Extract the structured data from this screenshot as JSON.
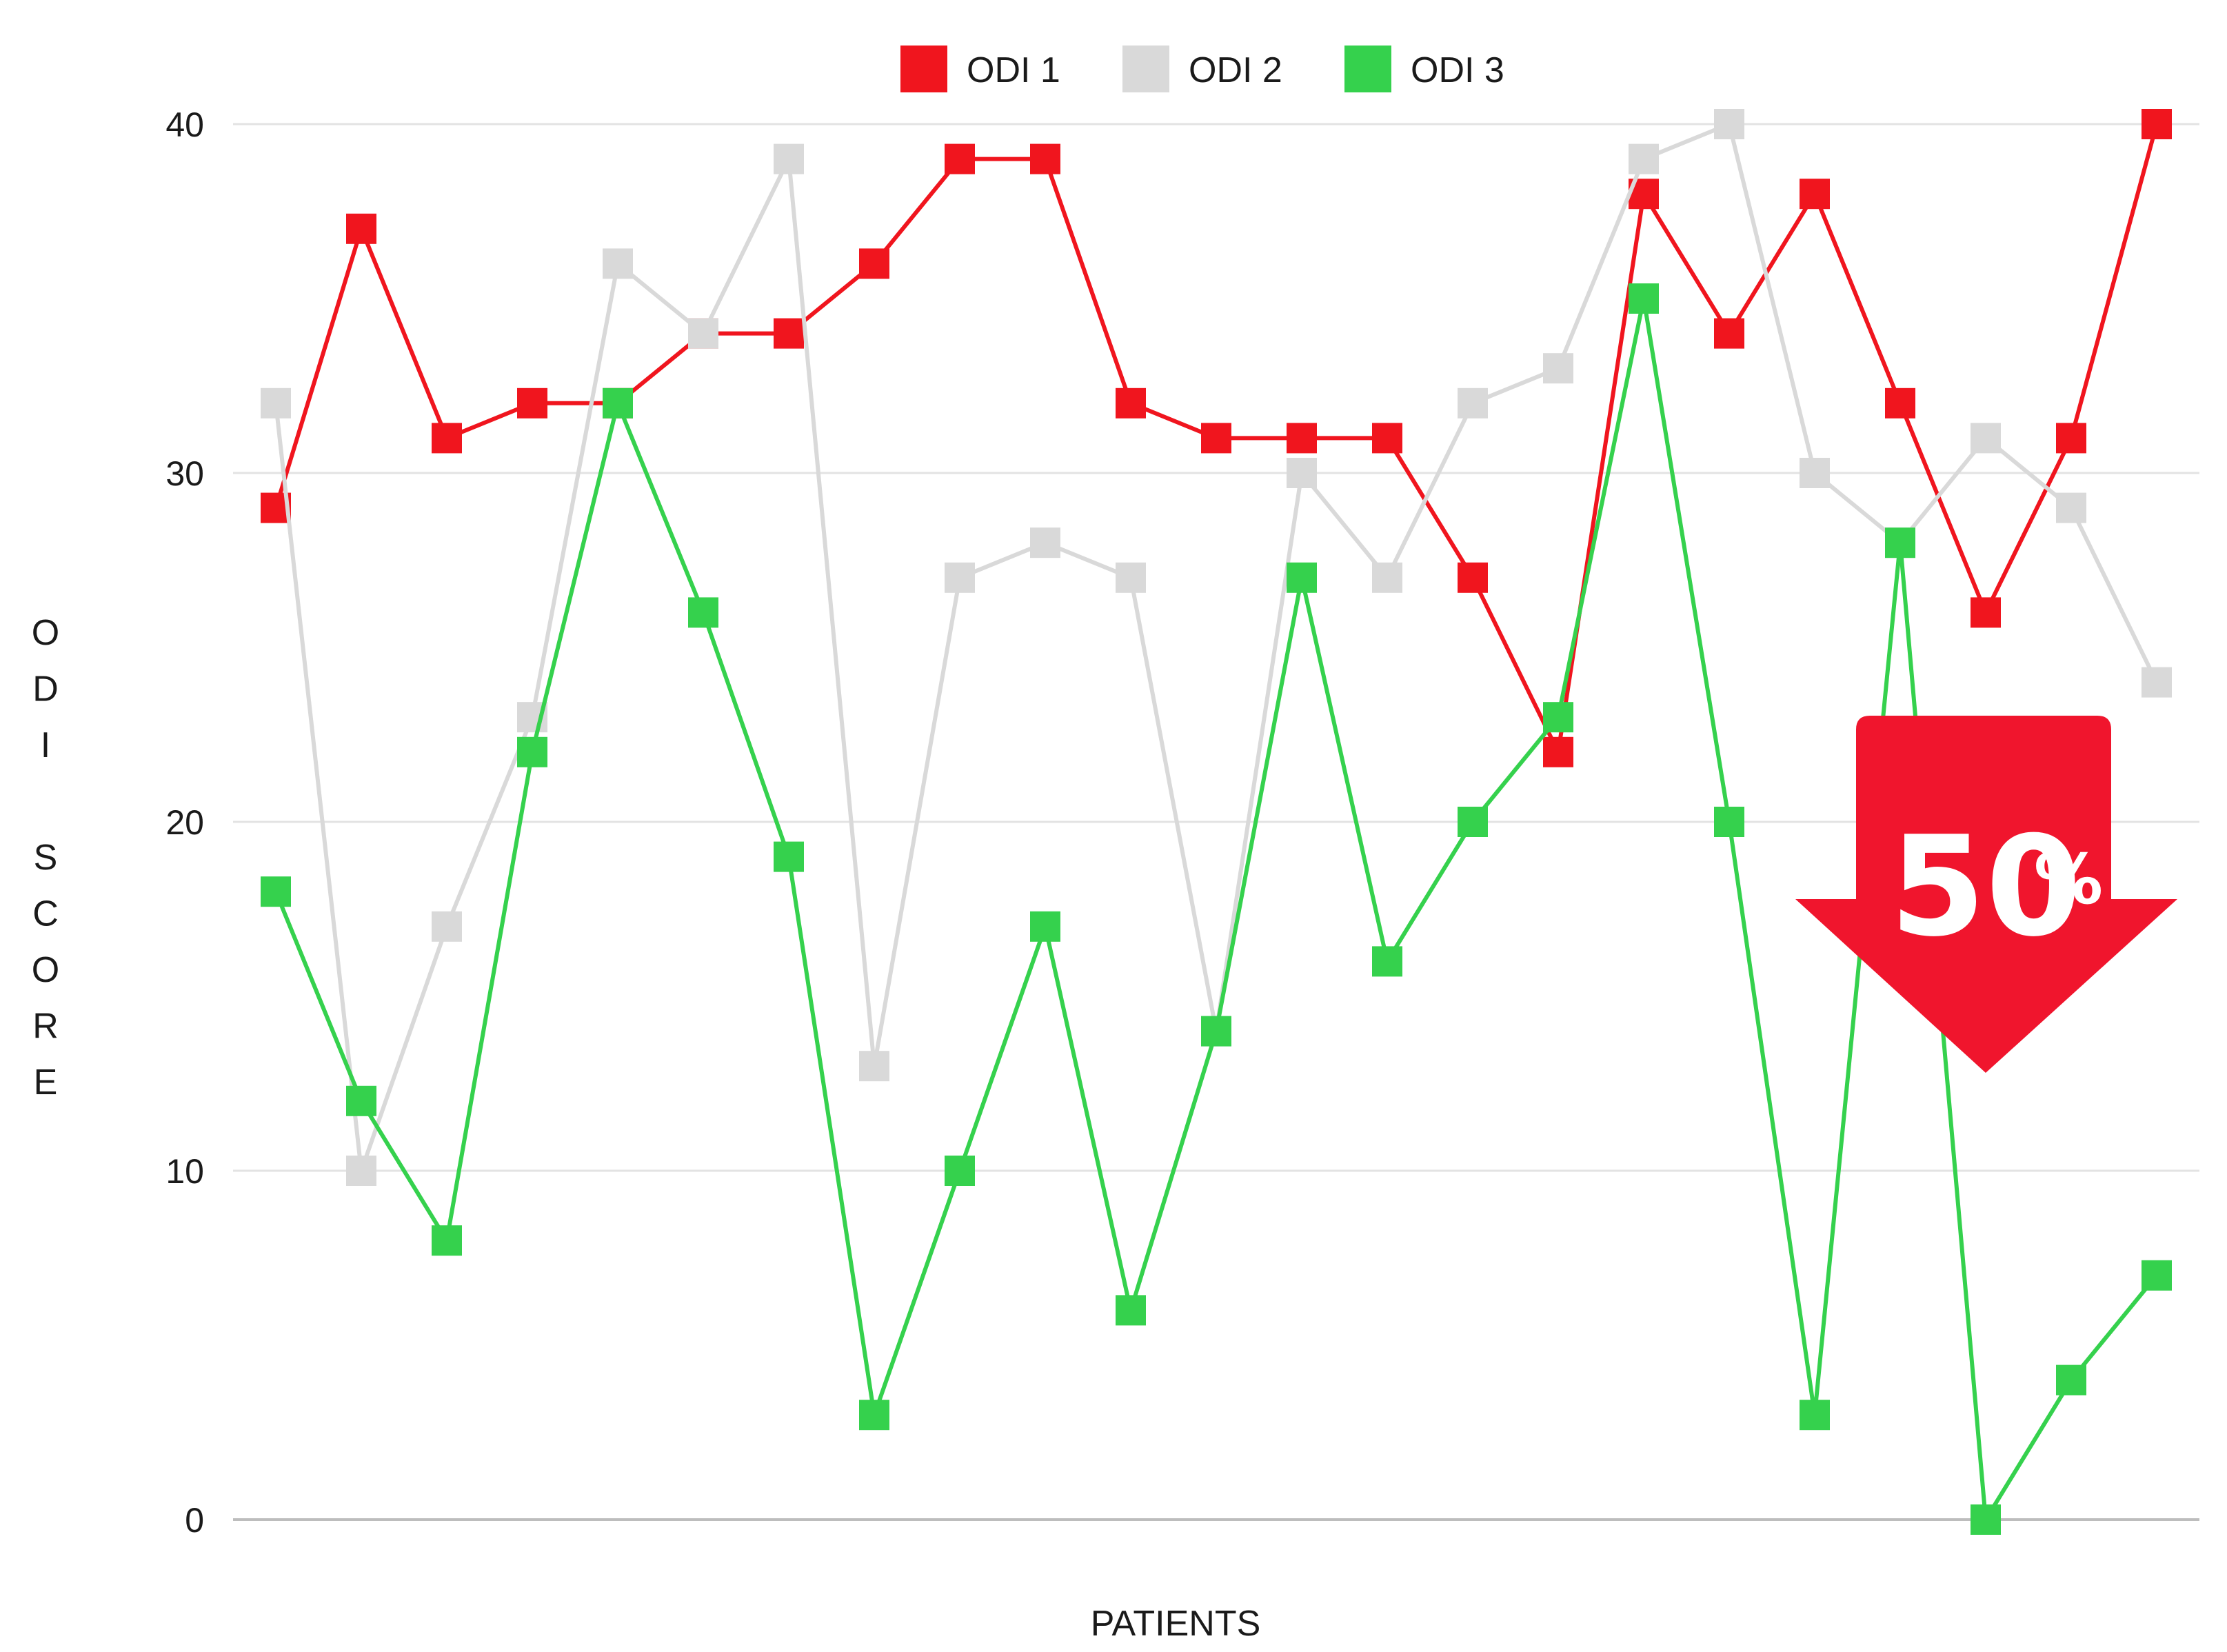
{
  "chart_data": {
    "type": "line",
    "xlabel": "PATIENTS",
    "ylabel": "ODI SCORE",
    "ylim": [
      0,
      40
    ],
    "yticks": [
      0,
      10,
      20,
      30,
      40
    ],
    "grid": true,
    "legend_position": "top-center",
    "x": [
      1,
      2,
      3,
      4,
      5,
      6,
      7,
      8,
      9,
      10,
      11,
      12,
      13,
      14,
      15,
      16,
      17,
      18,
      19,
      20,
      21,
      22,
      23
    ],
    "series": [
      {
        "name": "ODI 1",
        "color": "#f0151e",
        "marker": "square",
        "values": [
          29,
          37,
          31,
          32,
          32,
          34,
          34,
          36,
          39,
          39,
          32,
          31,
          31,
          31,
          27,
          22,
          38,
          34,
          38,
          32,
          26,
          31,
          40
        ]
      },
      {
        "name": "ODI 2",
        "color": "#d9d9d9",
        "marker": "square",
        "values": [
          32,
          10,
          17,
          23,
          36,
          34,
          39,
          13,
          27,
          28,
          27,
          14,
          30,
          27,
          32,
          33,
          39,
          40,
          30,
          28,
          31,
          29,
          24
        ]
      },
      {
        "name": "ODI 3",
        "color": "#35d14d",
        "marker": "square",
        "values": [
          18,
          12,
          8,
          22,
          32,
          26,
          19,
          3,
          10,
          17,
          6,
          14,
          27,
          16,
          20,
          23,
          35,
          20,
          3,
          28,
          0,
          4,
          7
        ]
      }
    ],
    "annotation": {
      "number": "50",
      "symbol": "%",
      "direction": "down",
      "color": "#f0152d"
    }
  }
}
